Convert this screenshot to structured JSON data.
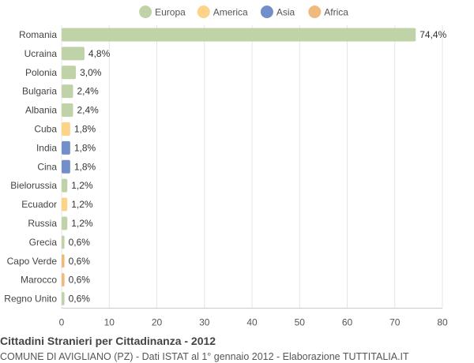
{
  "chart_data": {
    "type": "bar",
    "orientation": "horizontal",
    "title": "Cittadini Stranieri per Cittadinanza - 2012",
    "subtitle": "COMUNE DI AVIGLIANO (PZ) - Dati ISTAT al 1° gennaio 2012 - Elaborazione TUTTITALIA.IT",
    "xlim": [
      0,
      80
    ],
    "xticks": [
      0,
      10,
      20,
      30,
      40,
      50,
      60,
      70,
      80
    ],
    "grid": true,
    "legend_position": "top",
    "legend": [
      {
        "name": "Europa",
        "color": "#c0d3a8"
      },
      {
        "name": "America",
        "color": "#fdd387"
      },
      {
        "name": "Asia",
        "color": "#728fc9"
      },
      {
        "name": "Africa",
        "color": "#f0b97e"
      }
    ],
    "categories": [
      "Romania",
      "Ucraina",
      "Polonia",
      "Bulgaria",
      "Albania",
      "Cuba",
      "India",
      "Cina",
      "Bielorussia",
      "Ecuador",
      "Russia",
      "Grecia",
      "Capo Verde",
      "Marocco",
      "Regno Unito"
    ],
    "values": [
      74.4,
      4.8,
      3.0,
      2.4,
      2.4,
      1.8,
      1.8,
      1.8,
      1.2,
      1.2,
      1.2,
      0.6,
      0.6,
      0.6,
      0.6
    ],
    "labels": [
      "74,4%",
      "4,8%",
      "3,0%",
      "2,4%",
      "2,4%",
      "1,8%",
      "1,8%",
      "1,8%",
      "1,2%",
      "1,2%",
      "1,2%",
      "0,6%",
      "0,6%",
      "0,6%",
      "0,6%"
    ],
    "groups": [
      "Europa",
      "Europa",
      "Europa",
      "Europa",
      "Europa",
      "America",
      "Asia",
      "Asia",
      "Europa",
      "America",
      "Europa",
      "Europa",
      "Africa",
      "Africa",
      "Europa"
    ]
  }
}
